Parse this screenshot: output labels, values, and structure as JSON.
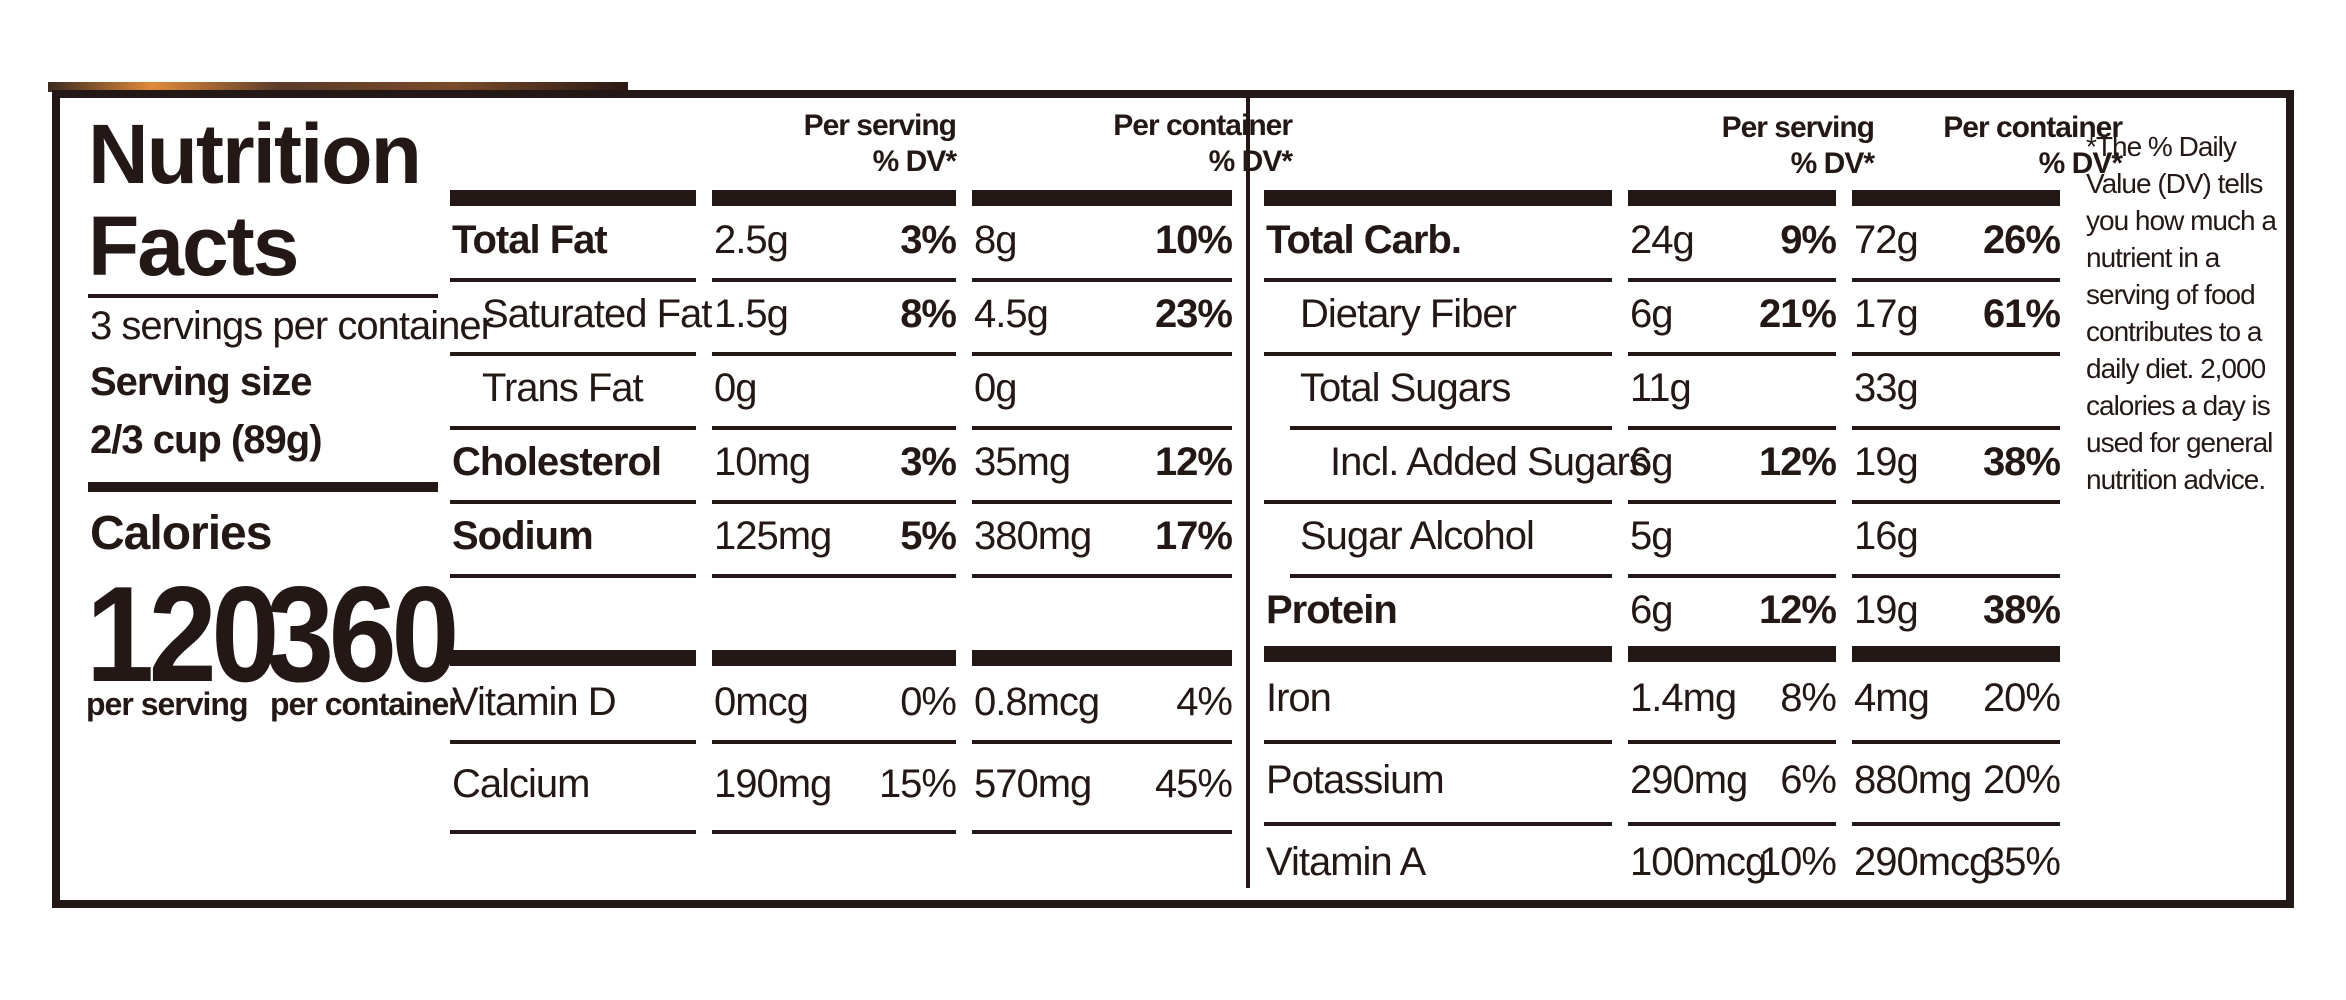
{
  "label": {
    "title_line1": "Nutrition",
    "title_line2": "Facts",
    "servings_per_container": "3 servings per container",
    "serving_size_label": "Serving size",
    "serving_size_value": "2/3 cup (89g)",
    "calories_label": "Calories",
    "calories_per_serving": "120",
    "calories_per_container": "360",
    "per_serving_label": "per serving",
    "per_container_label": "per container",
    "col_headers": {
      "per_serving": [
        "Per serving",
        "% DV*"
      ],
      "per_container": [
        "Per container",
        "% DV*"
      ]
    },
    "left_nutrients": [
      {
        "name": "Total Fat",
        "s_amt": "2.5g",
        "s_dv": "3%",
        "c_amt": "8g",
        "c_dv": "10%"
      },
      {
        "name": "Saturated Fat",
        "s_amt": "1.5g",
        "s_dv": "8%",
        "c_amt": "4.5g",
        "c_dv": "23%"
      },
      {
        "name": "Trans Fat",
        "s_amt": "0g",
        "s_dv": "",
        "c_amt": "0g",
        "c_dv": ""
      },
      {
        "name": "Cholesterol",
        "s_amt": "10mg",
        "s_dv": "3%",
        "c_amt": "35mg",
        "c_dv": "12%"
      },
      {
        "name": "Sodium",
        "s_amt": "125mg",
        "s_dv": "5%",
        "c_amt": "380mg",
        "c_dv": "17%"
      }
    ],
    "left_vitamins": [
      {
        "name": "Vitamin D",
        "s_amt": "0mcg",
        "s_dv": "0%",
        "c_amt": "0.8mcg",
        "c_dv": "4%"
      },
      {
        "name": "Calcium",
        "s_amt": "190mg",
        "s_dv": "15%",
        "c_amt": "570mg",
        "c_dv": "45%"
      }
    ],
    "right_nutrients": [
      {
        "name": "Total Carb.",
        "s_amt": "24g",
        "s_dv": "9%",
        "c_amt": "72g",
        "c_dv": "26%"
      },
      {
        "name": "Dietary Fiber",
        "s_amt": "6g",
        "s_dv": "21%",
        "c_amt": "17g",
        "c_dv": "61%"
      },
      {
        "name": "Total Sugars",
        "s_amt": "11g",
        "s_dv": "",
        "c_amt": "33g",
        "c_dv": ""
      },
      {
        "name": "Incl. Added Sugars",
        "s_amt": "6g",
        "s_dv": "12%",
        "c_amt": "19g",
        "c_dv": "38%"
      },
      {
        "name": "Sugar Alcohol",
        "s_amt": "5g",
        "s_dv": "",
        "c_amt": "16g",
        "c_dv": ""
      },
      {
        "name": "Protein",
        "s_amt": "6g",
        "s_dv": "12%",
        "c_amt": "19g",
        "c_dv": "38%"
      }
    ],
    "right_vitamins": [
      {
        "name": "Iron",
        "s_amt": "1.4mg",
        "s_dv": "8%",
        "c_amt": "4mg",
        "c_dv": "20%"
      },
      {
        "name": "Potassium",
        "s_amt": "290mg",
        "s_dv": "6%",
        "c_amt": "880mg",
        "c_dv": "20%"
      },
      {
        "name": "Vitamin A",
        "s_amt": "100mcg",
        "s_dv": "10%",
        "c_amt": "290mcg",
        "c_dv": "35%"
      }
    ],
    "footnote": "*The % Daily Value (DV) tells you how much a nutrient in a serving of food contributes to a daily diet. 2,000 calories a day is used for general nutrition advice."
  }
}
